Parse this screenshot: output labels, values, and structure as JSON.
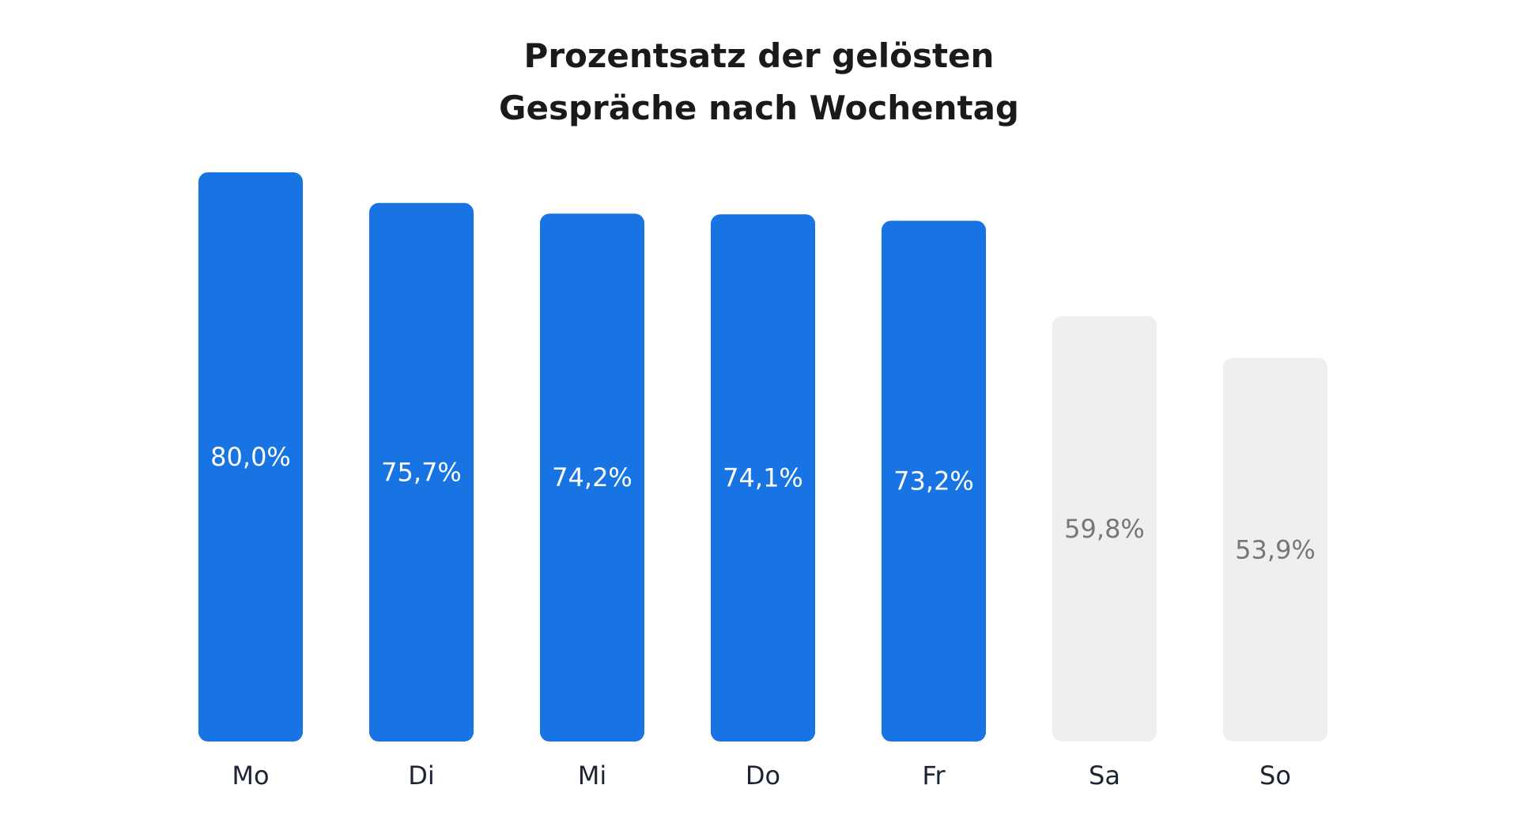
{
  "chart_data": {
    "type": "bar",
    "title_lines": [
      "Prozentsatz der gelösten",
      "Gespräche nach Wochentag"
    ],
    "categories": [
      "Mo",
      "Di",
      "Mi",
      "Do",
      "Fr",
      "Sa",
      "So"
    ],
    "values": [
      80.0,
      75.7,
      74.2,
      74.1,
      73.2,
      59.8,
      53.9
    ],
    "value_labels": [
      "80,0%",
      "75,7%",
      "74,2%",
      "74,1%",
      "73,2%",
      "59,8%",
      "53,9%"
    ],
    "ylim": [
      0,
      80
    ],
    "grid": false,
    "legend": "none",
    "colors": {
      "weekday_bar": "#1874e2",
      "weekend_bar": "#efefef",
      "weekday_label": "#ffffff",
      "weekend_label": "#777777"
    },
    "highlight": [
      true,
      true,
      true,
      true,
      true,
      false,
      false
    ]
  }
}
